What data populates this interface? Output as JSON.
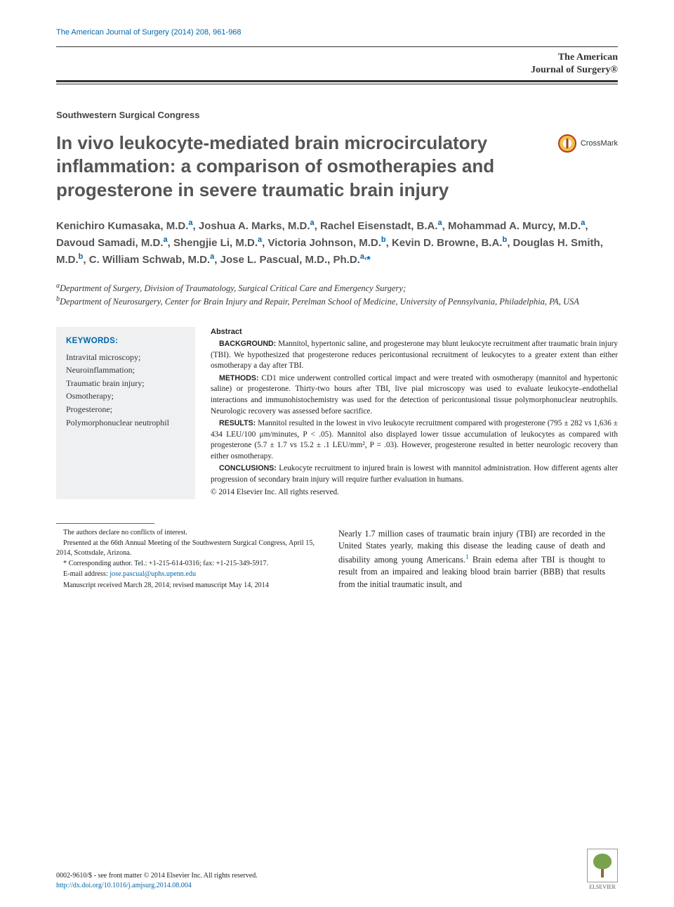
{
  "running_head": "The American Journal of Surgery (2014) 208, 961-968",
  "journal_brand_line1": "The American",
  "journal_brand_line2": "Journal of Surgery®",
  "section_label": "Southwestern Surgical Congress",
  "title": "In vivo leukocyte-mediated brain microcirculatory inflammation: a comparison of osmotherapies and progesterone in severe traumatic brain injury",
  "crossmark_label": "CrossMark",
  "authors_html": "Kenichiro Kumasaka, M.D.<sup>a</sup>, Joshua A. Marks, M.D.<sup>a</sup>, Rachel Eisenstadt, B.A.<sup>a</sup>, Mohammad A. Murcy, M.D.<sup>a</sup>, Davoud Samadi, M.D.<sup>a</sup>, Shengjie Li, M.D.<sup>a</sup>, Victoria Johnson, M.D.<sup>b</sup>, Kevin D. Browne, B.A.<sup>b</sup>, Douglas H. Smith, M.D.<sup>b</sup>, C. William Schwab, M.D.<sup>a</sup>, Jose L. Pascual, M.D., Ph.D.<sup>a,</sup><span class=\"corr-star\">*</span>",
  "affiliations": {
    "a": "Department of Surgery, Division of Traumatology, Surgical Critical Care and Emergency Surgery;",
    "b": "Department of Neurosurgery, Center for Brain Injury and Repair, Perelman School of Medicine, University of Pennsylvania, Philadelphia, PA, USA"
  },
  "keywords": {
    "heading": "KEYWORDS:",
    "items": [
      "Intravital microscopy;",
      "Neuroinflammation;",
      "Traumatic brain injury;",
      "Osmotherapy;",
      "Progesterone;",
      "Polymorphonuclear neutrophil"
    ]
  },
  "abstract": {
    "heading": "Abstract",
    "background_label": "BACKGROUND:",
    "background": "Mannitol, hypertonic saline, and progesterone may blunt leukocyte recruitment after traumatic brain injury (TBI). We hypothesized that progesterone reduces pericontusional recruitment of leukocytes to a greater extent than either osmotherapy a day after TBI.",
    "methods_label": "METHODS:",
    "methods": "CD1 mice underwent controlled cortical impact and were treated with osmotherapy (mannitol and hypertonic saline) or progesterone. Thirty-two hours after TBI, live pial microscopy was used to evaluate leukocyte–endothelial interactions and immunohistochemistry was used for the detection of pericontusional tissue polymorphonuclear neutrophils. Neurologic recovery was assessed before sacrifice.",
    "results_label": "RESULTS:",
    "results": "Mannitol resulted in the lowest in vivo leukocyte recruitment compared with progesterone (795 ± 282 vs 1,636 ± 434 LEU/100 μm/minutes, P < .05). Mannitol also displayed lower tissue accumulation of leukocytes as compared with progesterone (5.7 ± 1.7 vs 15.2 ± .1 LEU/mm², P = .03). However, progesterone resulted in better neurologic recovery than either osmotherapy.",
    "conclusions_label": "CONCLUSIONS:",
    "conclusions": "Leukocyte recruitment to injured brain is lowest with mannitol administration. How different agents alter progression of secondary brain injury will require further evaluation in humans.",
    "copyright": "© 2014 Elsevier Inc. All rights reserved."
  },
  "footnotes": {
    "coi": "The authors declare no conflicts of interest.",
    "meeting": "Presented at the 66th Annual Meeting of the Southwestern Surgical Congress, April 15, 2014, Scottsdale, Arizona.",
    "corresponding": "* Corresponding author. Tel.: +1-215-614-0316; fax: +1-215-349-5917.",
    "email_label": "E-mail address:",
    "email": "jose.pascual@uphs.upenn.edu",
    "received": "Manuscript received March 28, 2014; revised manuscript May 14, 2014"
  },
  "intro_text": "Nearly 1.7 million cases of traumatic brain injury (TBI) are recorded in the United States yearly, making this disease the leading cause of death and disability among young Americans.<sup>1</sup> Brain edema after TBI is thought to result from an impaired and leaking blood brain barrier (BBB) that results from the initial traumatic insult, and",
  "footer": {
    "issn_line": "0002-9610/$ - see front matter © 2014 Elsevier Inc. All rights reserved.",
    "doi": "http://dx.doi.org/10.1016/j.amjsurg.2014.08.004",
    "publisher": "ELSEVIER"
  },
  "colors": {
    "link": "#0066aa",
    "heading_gray": "#555555",
    "kw_bg": "#eef0f2"
  }
}
